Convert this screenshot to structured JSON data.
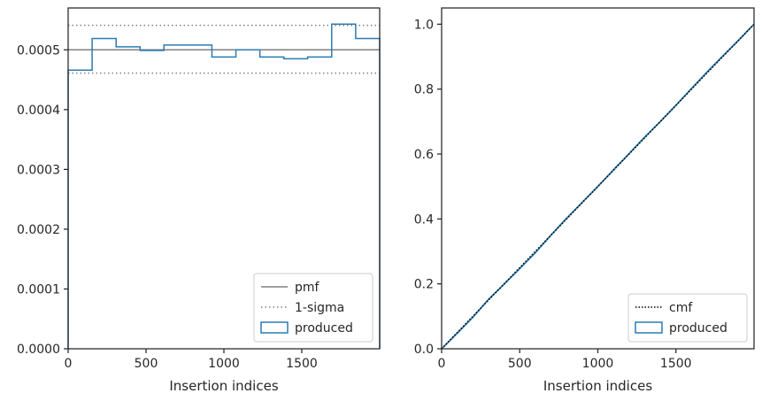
{
  "chart_data": [
    {
      "type": "step",
      "title": "",
      "xlabel": "Insertion indices",
      "ylabel": "",
      "xlim": [
        0,
        2000
      ],
      "ylim": [
        0,
        0.00057
      ],
      "xticks": [
        0,
        500,
        1000,
        1500
      ],
      "xtick_labels": [
        "0",
        "500",
        "1000",
        "1500"
      ],
      "yticks": [
        0,
        0.0001,
        0.0002,
        0.0003,
        0.0004,
        0.0005
      ],
      "ytick_labels": [
        "0.0000",
        "0.0001",
        "0.0002",
        "0.0003",
        "0.0004",
        "0.0005"
      ],
      "pmf": 0.0005,
      "sigma_upper": 0.000541,
      "sigma_lower": 0.000461,
      "bin_edges": [
        0,
        154,
        308,
        462,
        615,
        769,
        923,
        1077,
        1231,
        1385,
        1538,
        1692,
        1846,
        2000
      ],
      "produced": [
        0.000466,
        0.000519,
        0.000505,
        0.000499,
        0.000508,
        0.000508,
        0.000488,
        0.0005,
        0.000488,
        0.000485,
        0.000488,
        0.000543,
        0.000519
      ],
      "legend": [
        "pmf",
        "1-sigma",
        "produced"
      ],
      "legend_position": "lower-right",
      "colors": {
        "pmf": "#808080",
        "sigma": "#808080",
        "produced": "#2a7cb3"
      }
    },
    {
      "type": "step",
      "title": "",
      "xlabel": "Insertion indices",
      "ylabel": "",
      "xlim": [
        0,
        2000
      ],
      "ylim": [
        0,
        1.05
      ],
      "xticks": [
        0,
        500,
        1000,
        1500
      ],
      "xtick_labels": [
        "0",
        "500",
        "1000",
        "1500"
      ],
      "yticks": [
        0,
        0.2,
        0.4,
        0.6,
        0.8,
        1.0
      ],
      "ytick_labels": [
        "0.0",
        "0.2",
        "0.4",
        "0.6",
        "0.8",
        "1.0"
      ],
      "cmf_x": [
        0,
        2000
      ],
      "cmf_y": [
        0,
        1.0
      ],
      "produced_x": [
        0,
        100,
        200,
        300,
        400,
        500,
        600,
        700,
        800,
        900,
        1000,
        1100,
        1200,
        1300,
        1400,
        1500,
        1600,
        1700,
        1800,
        1900,
        2000
      ],
      "produced_y": [
        0,
        0.048,
        0.097,
        0.152,
        0.199,
        0.247,
        0.296,
        0.35,
        0.402,
        0.451,
        0.5,
        0.551,
        0.601,
        0.652,
        0.7,
        0.75,
        0.802,
        0.853,
        0.902,
        0.95,
        1.0
      ],
      "legend": [
        "cmf",
        "produced"
      ],
      "legend_position": "lower-right",
      "colors": {
        "cmf": "#000000",
        "produced": "#2a7cb3"
      }
    }
  ]
}
